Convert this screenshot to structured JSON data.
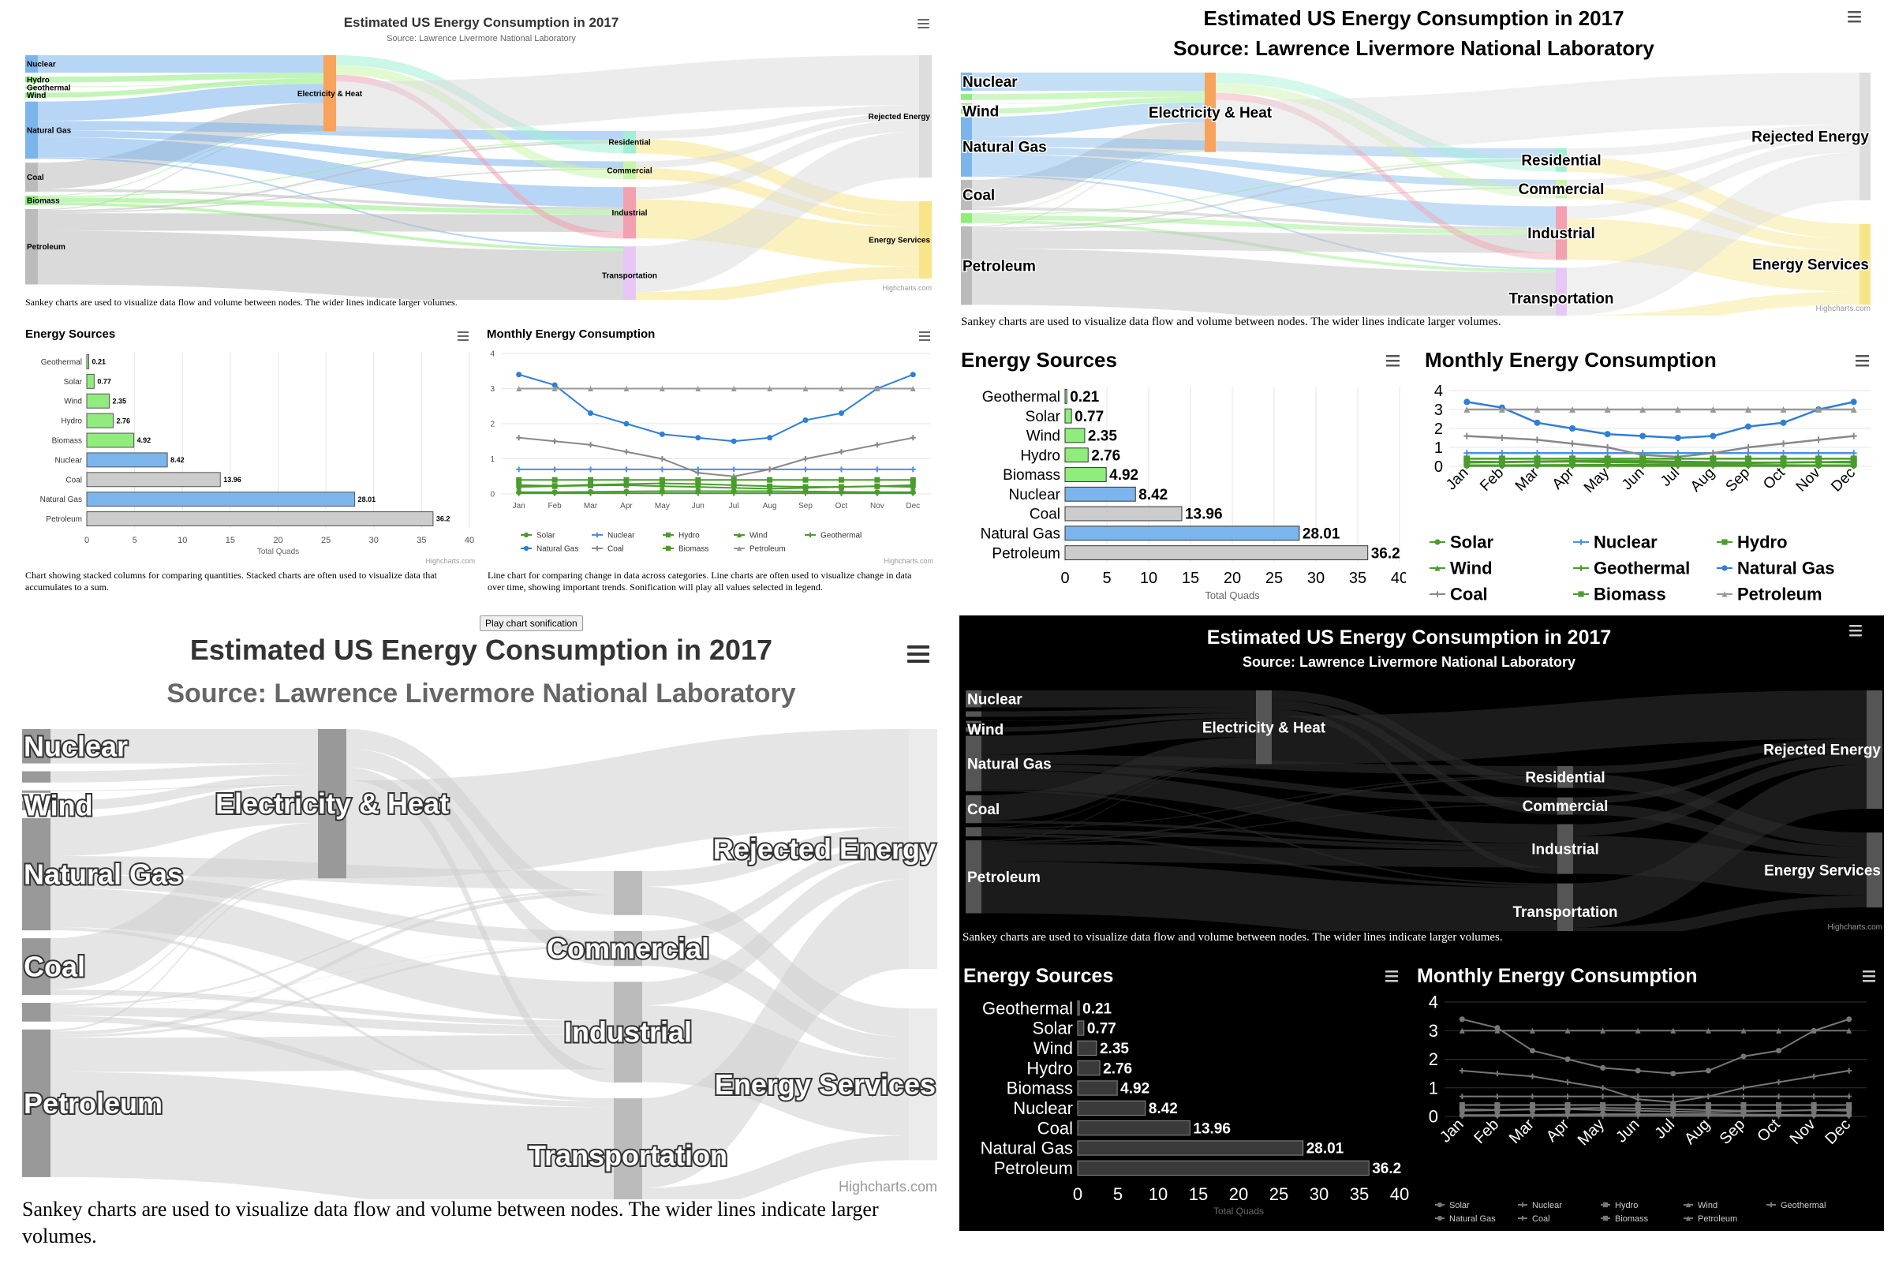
{
  "sankey": {
    "title": "Estimated US Energy Consumption in 2017",
    "subtitle": "Source: Lawrence Livermore National Laboratory",
    "credit": "Highcharts.com",
    "caption": "Sankey charts are used to visualize data flow and volume between nodes. The wider lines indicate larger volumes.",
    "menu_icon": "hamburger-menu-icon",
    "node_labels": {
      "nuclear": "Nuclear",
      "hydro": "Hydro",
      "geothermal": "Geothermal",
      "wind": "Wind",
      "natural_gas": "Natural Gas",
      "coal": "Coal",
      "biomass": "Biomass",
      "petroleum": "Petroleum",
      "elec": "Electricity & Heat",
      "residential": "Residential",
      "commercial": "Commercial",
      "industrial": "Industrial",
      "transportation": "Transportation",
      "rejected": "Rejected Energy",
      "services": "Energy Services"
    }
  },
  "bar_chart": {
    "title": "Energy Sources",
    "xlabel": "Total Quads",
    "credit": "Highcharts.com",
    "caption": "Chart showing stacked columns for comparing quantities. Stacked charts are often used to visualize data that accumulates to a sum."
  },
  "line_chart": {
    "title": "Monthly Energy Consumption",
    "credit": "Highcharts.com",
    "caption": "Line chart for comparing change in data across categories. Line charts are often used to visualize change in data over time, showing important trends. Sonification will play all values selected in legend.",
    "sonify_button": "Play chart sonification"
  },
  "chart_data": [
    {
      "type": "bar",
      "title": "Energy Sources",
      "categories": [
        "Geothermal",
        "Solar",
        "Wind",
        "Hydro",
        "Biomass",
        "Nuclear",
        "Coal",
        "Natural Gas",
        "Petroleum"
      ],
      "values": [
        0.21,
        0.77,
        2.35,
        2.76,
        4.92,
        8.42,
        13.96,
        28.01,
        36.2
      ],
      "colors": [
        "#90ed7d",
        "#90ed7d",
        "#90ed7d",
        "#90ed7d",
        "#90ed7d",
        "#7cb5ec",
        "#cccccc",
        "#7cb5ec",
        "#cccccc"
      ],
      "xlabel": "Total Quads",
      "xlim": [
        0,
        40
      ],
      "xticks": [
        0,
        5,
        10,
        15,
        20,
        25,
        30,
        35,
        40
      ]
    },
    {
      "type": "line",
      "title": "Monthly Energy Consumption",
      "categories": [
        "Jan",
        "Feb",
        "Mar",
        "Apr",
        "May",
        "Jun",
        "Jul",
        "Aug",
        "Sep",
        "Oct",
        "Nov",
        "Dec"
      ],
      "ylim": [
        0,
        4
      ],
      "yticks": [
        0,
        1,
        2,
        3,
        4
      ],
      "series": [
        {
          "name": "Solar",
          "color": "#4a9c2d",
          "marker": "circle",
          "values": [
            0.05,
            0.05,
            0.06,
            0.07,
            0.08,
            0.08,
            0.08,
            0.08,
            0.07,
            0.06,
            0.05,
            0.05
          ]
        },
        {
          "name": "Nuclear",
          "color": "#4a90e2",
          "marker": "cross",
          "values": [
            0.7,
            0.7,
            0.7,
            0.7,
            0.7,
            0.7,
            0.7,
            0.7,
            0.7,
            0.7,
            0.7,
            0.7
          ]
        },
        {
          "name": "Hydro",
          "color": "#4a9c2d",
          "marker": "square",
          "values": [
            0.25,
            0.23,
            0.26,
            0.28,
            0.3,
            0.28,
            0.25,
            0.22,
            0.2,
            0.2,
            0.22,
            0.25
          ]
        },
        {
          "name": "Wind",
          "color": "#4a9c2d",
          "marker": "triangle",
          "values": [
            0.2,
            0.22,
            0.24,
            0.25,
            0.22,
            0.2,
            0.17,
            0.15,
            0.17,
            0.2,
            0.22,
            0.2
          ]
        },
        {
          "name": "Geothermal",
          "color": "#4a9c2d",
          "marker": "cross",
          "values": [
            0.02,
            0.02,
            0.02,
            0.02,
            0.02,
            0.02,
            0.02,
            0.02,
            0.02,
            0.02,
            0.02,
            0.02
          ]
        },
        {
          "name": "Natural Gas",
          "color": "#2f7ed8",
          "marker": "circle",
          "values": [
            3.4,
            3.1,
            2.3,
            2.0,
            1.7,
            1.6,
            1.5,
            1.6,
            2.1,
            2.3,
            3.0,
            3.4
          ]
        },
        {
          "name": "Coal",
          "color": "#888888",
          "marker": "cross",
          "values": [
            1.6,
            1.5,
            1.4,
            1.2,
            1.0,
            0.6,
            0.5,
            0.7,
            1.0,
            1.2,
            1.4,
            1.6
          ]
        },
        {
          "name": "Biomass",
          "color": "#4a9c2d",
          "marker": "square",
          "values": [
            0.4,
            0.4,
            0.4,
            0.4,
            0.4,
            0.4,
            0.4,
            0.4,
            0.4,
            0.4,
            0.4,
            0.4
          ]
        },
        {
          "name": "Petroleum",
          "color": "#999999",
          "marker": "triangle",
          "values": [
            3.0,
            3.0,
            3.0,
            3.0,
            3.0,
            3.0,
            3.0,
            3.0,
            3.0,
            3.0,
            3.0,
            3.0
          ]
        }
      ]
    },
    {
      "type": "sankey",
      "title": "Estimated US Energy Consumption in 2017",
      "links": [
        [
          "Nuclear",
          "Electricity & Heat",
          8.42
        ],
        [
          "Hydro",
          "Electricity & Heat",
          2.76
        ],
        [
          "Wind",
          "Electricity & Heat",
          2.35
        ],
        [
          "Geothermal",
          "Electricity & Heat",
          0.21
        ],
        [
          "Natural Gas",
          "Electricity & Heat",
          9.3
        ],
        [
          "Coal",
          "Electricity & Heat",
          12.6
        ],
        [
          "Biomass",
          "Electricity & Heat",
          0.4
        ],
        [
          "Petroleum",
          "Electricity & Heat",
          0.5
        ],
        [
          "Natural Gas",
          "Residential",
          4.5
        ],
        [
          "Natural Gas",
          "Commercial",
          3.3
        ],
        [
          "Natural Gas",
          "Industrial",
          9.6
        ],
        [
          "Natural Gas",
          "Transportation",
          0.8
        ],
        [
          "Coal",
          "Industrial",
          1.3
        ],
        [
          "Biomass",
          "Residential",
          0.5
        ],
        [
          "Biomass",
          "Commercial",
          0.1
        ],
        [
          "Biomass",
          "Industrial",
          2.2
        ],
        [
          "Biomass",
          "Transportation",
          1.4
        ],
        [
          "Petroleum",
          "Residential",
          0.9
        ],
        [
          "Petroleum",
          "Commercial",
          0.6
        ],
        [
          "Petroleum",
          "Industrial",
          8.4
        ],
        [
          "Petroleum",
          "Transportation",
          25.8
        ],
        [
          "Electricity & Heat",
          "Residential",
          4.8
        ],
        [
          "Electricity & Heat",
          "Commercial",
          4.6
        ],
        [
          "Electricity & Heat",
          "Industrial",
          3.2
        ],
        [
          "Electricity & Heat",
          "Rejected Energy",
          24.0
        ],
        [
          "Residential",
          "Rejected Energy",
          3.8
        ],
        [
          "Residential",
          "Energy Services",
          7.0
        ],
        [
          "Commercial",
          "Rejected Energy",
          3.2
        ],
        [
          "Commercial",
          "Energy Services",
          5.4
        ],
        [
          "Industrial",
          "Rejected Energy",
          5.8
        ],
        [
          "Industrial",
          "Energy Services",
          18.8
        ],
        [
          "Transportation",
          "Rejected Energy",
          22.0
        ],
        [
          "Transportation",
          "Energy Services",
          6.0
        ]
      ]
    }
  ]
}
